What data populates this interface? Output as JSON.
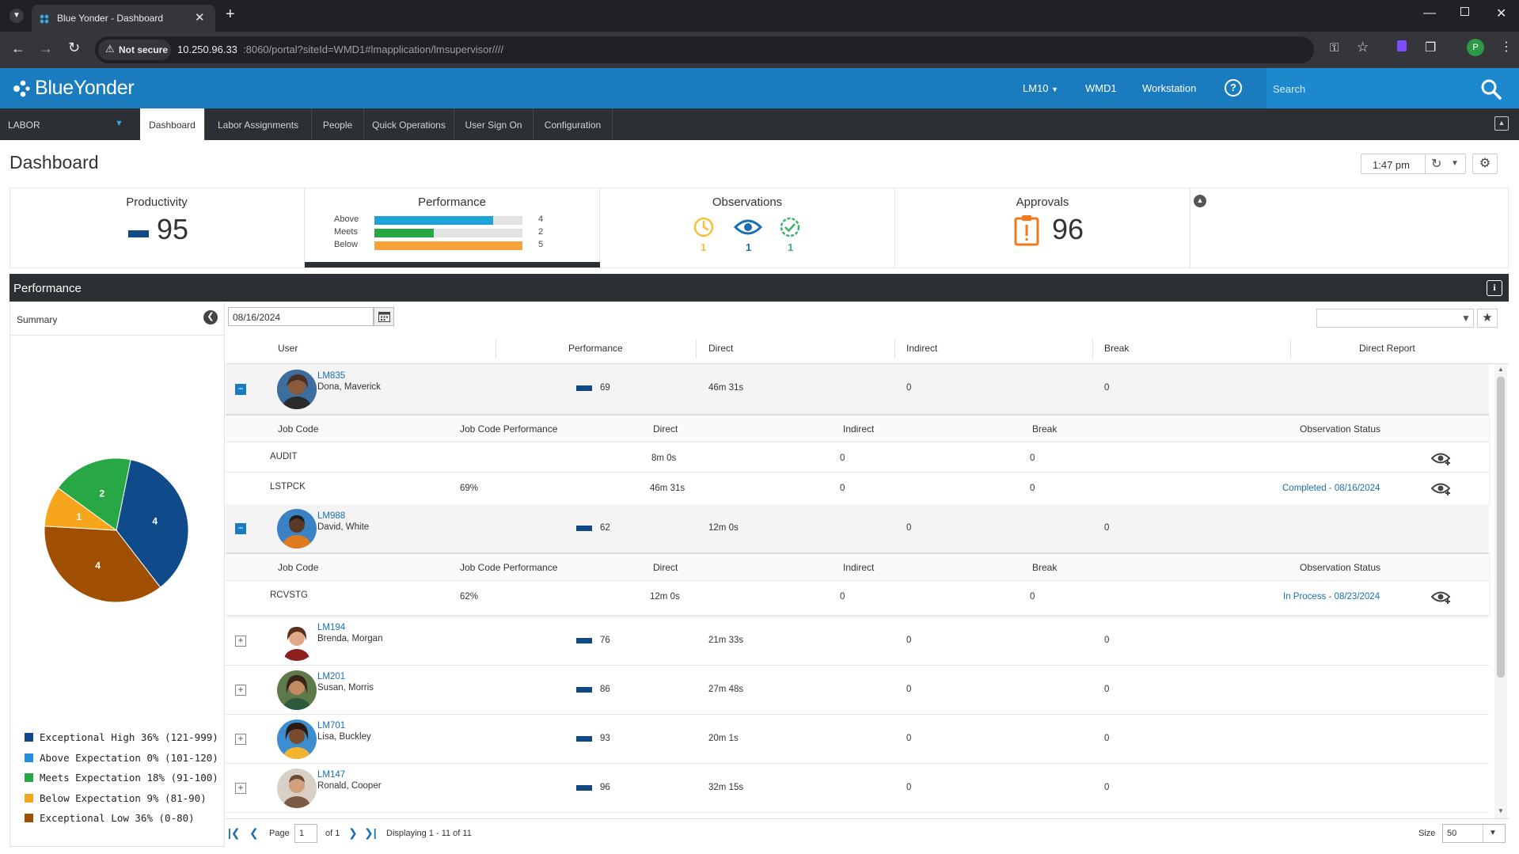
{
  "browser": {
    "tab_title": "Blue Yonder - Dashboard",
    "security_label": "Not secure",
    "url_host": "10.250.96.33",
    "url_rest": ":8060/portal?siteId=WMD1#lmapplication/lmsupervisor////",
    "profile_initial": "P"
  },
  "header": {
    "brand": "BlueYonder",
    "user_menu": "LM10",
    "site": "WMD1",
    "workstation": "Workstation",
    "help": "?",
    "search_placeholder": "Search"
  },
  "nav": {
    "module": "LABOR",
    "tabs": [
      "Dashboard",
      "Labor Assignments",
      "People",
      "Quick Operations",
      "User Sign On",
      "Configuration"
    ]
  },
  "page": {
    "title": "Dashboard",
    "time": "1:47 pm"
  },
  "widgets": {
    "productivity": {
      "title": "Productivity",
      "value": "95"
    },
    "performance": {
      "title": "Performance",
      "rows": [
        {
          "label": "Above",
          "count": "4",
          "fraction": 0.8,
          "color": "#1fa3d6"
        },
        {
          "label": "Meets",
          "count": "2",
          "fraction": 0.4,
          "color": "#27a844"
        },
        {
          "label": "Below",
          "count": "5",
          "fraction": 1.0,
          "color": "#f7a23b"
        }
      ]
    },
    "observations": {
      "title": "Observations",
      "pending": "1",
      "in_process": "1",
      "completed": "1"
    },
    "approvals": {
      "title": "Approvals",
      "value": "96"
    }
  },
  "section": {
    "title": "Performance"
  },
  "summary": {
    "label": "Summary",
    "date": "08/16/2024"
  },
  "chart_data": {
    "type": "pie",
    "slices": [
      {
        "label": "Exceptional High",
        "value": 4,
        "color": "#0f4a8a"
      },
      {
        "label": "Above Expectation",
        "value": 0,
        "color": "#1f8fde"
      },
      {
        "label": "Meets Expectation",
        "value": 2,
        "color": "#27a844"
      },
      {
        "label": "Below Expectation",
        "value": 1,
        "color": "#f7a51a"
      },
      {
        "label": "Exceptional Low",
        "value": 4,
        "color": "#a04f00"
      }
    ],
    "legend": [
      "Exceptional High 36% (121-999)",
      "Above Expectation 0% (101-120)",
      "Meets Expectation 18% (91-100)",
      "Below Expectation 9% (81-90)",
      "Exceptional Low 36% (0-80)"
    ],
    "legend_position": "bottom"
  },
  "grid": {
    "columns": [
      "User",
      "Performance",
      "Direct",
      "Indirect",
      "Break",
      "Direct Report"
    ],
    "sub_columns": [
      "Job Code",
      "Job Code Performance",
      "Direct",
      "Indirect",
      "Break",
      "Observation Status"
    ],
    "users": [
      {
        "id": "LM835",
        "name": "Dona, Maverick",
        "perf": "69",
        "direct": "46m 31s",
        "indirect": "0",
        "brk": "0",
        "expanded": true,
        "jobs": [
          {
            "code": "AUDIT",
            "jcperf": "",
            "direct": "8m  0s",
            "indirect": "0",
            "brk": "0",
            "status": ""
          },
          {
            "code": "LSTPCK",
            "jcperf": "69%",
            "direct": "46m 31s",
            "indirect": "0",
            "brk": "0",
            "status": "Completed - 08/16/2024"
          }
        ]
      },
      {
        "id": "LM988",
        "name": "David, White",
        "perf": "62",
        "direct": "12m  0s",
        "indirect": "0",
        "brk": "0",
        "expanded": true,
        "jobs": [
          {
            "code": "RCVSTG",
            "jcperf": "62%",
            "direct": "12m  0s",
            "indirect": "0",
            "brk": "0",
            "status": "In Process - 08/23/2024"
          }
        ]
      },
      {
        "id": "LM194",
        "name": "Brenda, Morgan",
        "perf": "76",
        "direct": "21m 33s",
        "indirect": "0",
        "brk": "0"
      },
      {
        "id": "LM201",
        "name": "Susan, Morris",
        "perf": "86",
        "direct": "27m 48s",
        "indirect": "0",
        "brk": "0"
      },
      {
        "id": "LM701",
        "name": "Lisa, Buckley",
        "perf": "93",
        "direct": "20m  1s",
        "indirect": "0",
        "brk": "0"
      },
      {
        "id": "LM147",
        "name": "Ronald, Cooper",
        "perf": "96",
        "direct": "32m 15s",
        "indirect": "0",
        "brk": "0"
      }
    ]
  },
  "pager": {
    "page_label": "Page",
    "page": "1",
    "of": "of 1",
    "displaying": "Displaying 1 - 11 of 11",
    "size_label": "Size",
    "size": "50"
  }
}
